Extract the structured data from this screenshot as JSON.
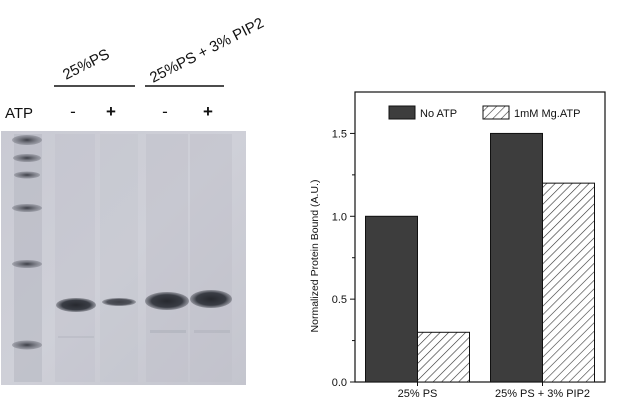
{
  "gel": {
    "group_labels": [
      "25%PS",
      "25%PS + 3% PIP2"
    ],
    "row_label": "ATP",
    "lane_marks": [
      "-",
      "+",
      "-",
      "+"
    ]
  },
  "chart_data": {
    "type": "bar",
    "categories": [
      "25% PS",
      "25% PS + 3% PIP2"
    ],
    "series": [
      {
        "name": "No ATP",
        "values": [
          1.0,
          1.5
        ],
        "fill": "#3d3d3d",
        "pattern": "solid"
      },
      {
        "name": "1mM Mg.ATP",
        "values": [
          0.3,
          1.2
        ],
        "fill": "#ffffff",
        "pattern": "diagonal-hatch"
      }
    ],
    "title": "",
    "xlabel": "",
    "ylabel": "Normalized Protein Bound (A.U.)",
    "ylim": [
      0,
      1.75
    ],
    "yticks": [
      "0.0",
      "0.5",
      "1.0",
      "1.5"
    ],
    "grid": false,
    "legend": "top"
  }
}
